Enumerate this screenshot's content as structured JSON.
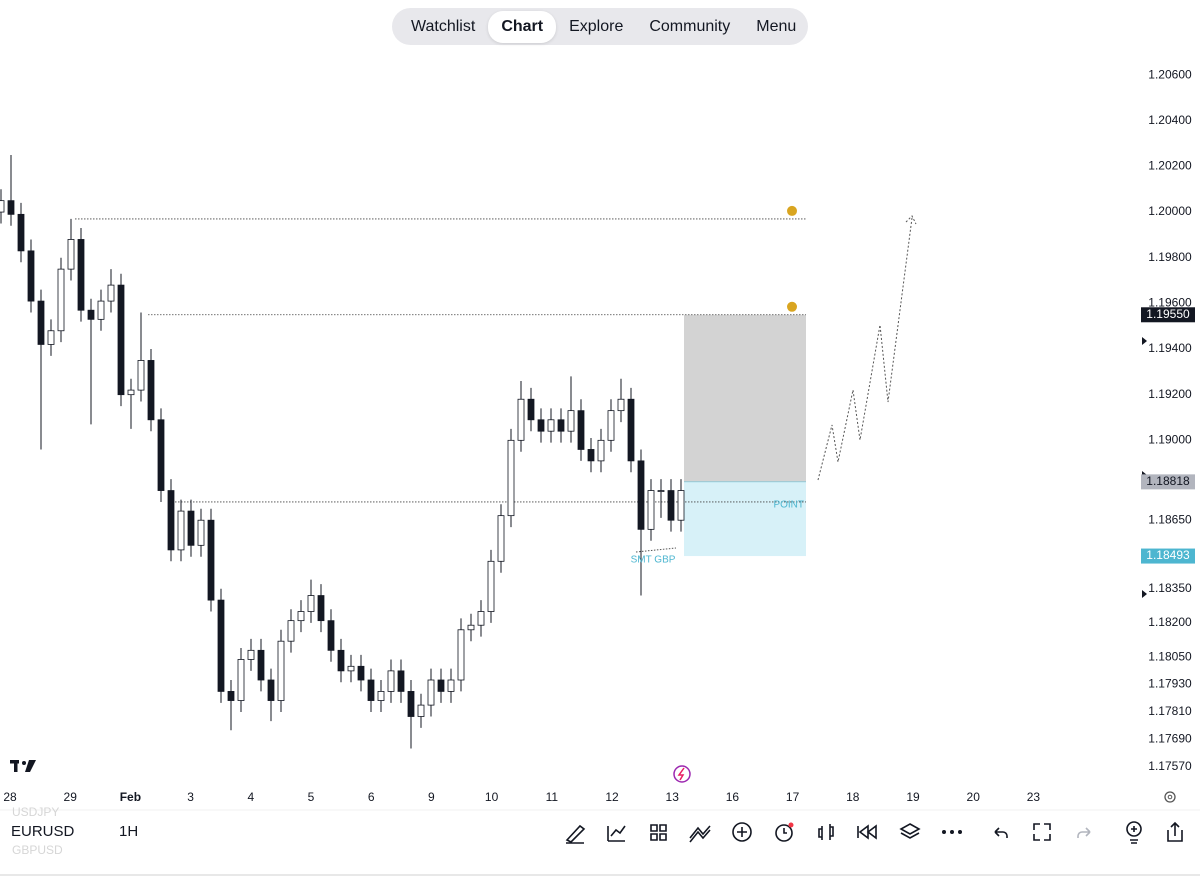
{
  "nav": {
    "tabs": [
      "Watchlist",
      "Chart",
      "Explore",
      "Community",
      "Menu"
    ],
    "active": 1
  },
  "chart_data": {
    "type": "candlestick",
    "symbol": "EURUSD",
    "interval": "1H",
    "other_symbols": [
      "USDJPY",
      "GBPUSD"
    ],
    "categories": [
      "28",
      "29",
      "Feb",
      "3",
      "4",
      "5",
      "6",
      "9",
      "10",
      "11",
      "12",
      "13",
      "16",
      "17",
      "18",
      "19",
      "20",
      "23"
    ],
    "candles": [
      [
        1.2,
        1.201,
        1.1995,
        1.2005
      ],
      [
        1.2005,
        1.2025,
        1.1994,
        1.1999
      ],
      [
        1.1999,
        1.2004,
        1.1978,
        1.1983
      ],
      [
        1.1983,
        1.1988,
        1.1956,
        1.1961
      ],
      [
        1.1961,
        1.1966,
        1.1896,
        1.1942
      ],
      [
        1.1942,
        1.1953,
        1.1937,
        1.1948
      ],
      [
        1.1948,
        1.198,
        1.1943,
        1.1975
      ],
      [
        1.1975,
        1.1997,
        1.197,
        1.1988
      ],
      [
        1.1988,
        1.1993,
        1.1952,
        1.1957
      ],
      [
        1.1957,
        1.1962,
        1.1907,
        1.1953
      ],
      [
        1.1953,
        1.1966,
        1.1948,
        1.1961
      ],
      [
        1.1961,
        1.1975,
        1.1956,
        1.1968
      ],
      [
        1.1968,
        1.1973,
        1.1915,
        1.192
      ],
      [
        1.192,
        1.1927,
        1.1905,
        1.1922
      ],
      [
        1.1922,
        1.1956,
        1.1917,
        1.1935
      ],
      [
        1.1935,
        1.194,
        1.1904,
        1.1909
      ],
      [
        1.1909,
        1.1914,
        1.1873,
        1.1878
      ],
      [
        1.1878,
        1.1883,
        1.1847,
        1.1852
      ],
      [
        1.1852,
        1.1874,
        1.1847,
        1.1869
      ],
      [
        1.1869,
        1.1874,
        1.1849,
        1.1854
      ],
      [
        1.1854,
        1.187,
        1.1849,
        1.1865
      ],
      [
        1.1865,
        1.187,
        1.1825,
        1.183
      ],
      [
        1.183,
        1.1835,
        1.1785,
        1.179
      ],
      [
        1.179,
        1.1795,
        1.1773,
        1.1786
      ],
      [
        1.1786,
        1.1809,
        1.1781,
        1.1804
      ],
      [
        1.1804,
        1.1813,
        1.1799,
        1.1808
      ],
      [
        1.1808,
        1.1813,
        1.179,
        1.1795
      ],
      [
        1.1795,
        1.18,
        1.1777,
        1.1786
      ],
      [
        1.1786,
        1.1817,
        1.1781,
        1.1812
      ],
      [
        1.1812,
        1.1826,
        1.1807,
        1.1821
      ],
      [
        1.1821,
        1.183,
        1.1816,
        1.1825
      ],
      [
        1.1825,
        1.1839,
        1.182,
        1.1832
      ],
      [
        1.1832,
        1.1837,
        1.1816,
        1.1821
      ],
      [
        1.1821,
        1.1826,
        1.1803,
        1.1808
      ],
      [
        1.1808,
        1.1813,
        1.1794,
        1.1799
      ],
      [
        1.1799,
        1.1806,
        1.1794,
        1.1801
      ],
      [
        1.1801,
        1.1806,
        1.179,
        1.1795
      ],
      [
        1.1795,
        1.18,
        1.1781,
        1.1786
      ],
      [
        1.1786,
        1.1795,
        1.1781,
        1.179
      ],
      [
        1.179,
        1.1804,
        1.1785,
        1.1799
      ],
      [
        1.1799,
        1.1804,
        1.1785,
        1.179
      ],
      [
        1.179,
        1.1795,
        1.1765,
        1.1779
      ],
      [
        1.1779,
        1.1789,
        1.1774,
        1.1784
      ],
      [
        1.1784,
        1.18,
        1.1779,
        1.1795
      ],
      [
        1.1795,
        1.18,
        1.1785,
        1.179
      ],
      [
        1.179,
        1.18,
        1.1785,
        1.1795
      ],
      [
        1.1795,
        1.1822,
        1.179,
        1.1817
      ],
      [
        1.1817,
        1.1824,
        1.1812,
        1.1819
      ],
      [
        1.1819,
        1.183,
        1.1814,
        1.1825
      ],
      [
        1.1825,
        1.1852,
        1.182,
        1.1847
      ],
      [
        1.1847,
        1.1872,
        1.1842,
        1.1867
      ],
      [
        1.1867,
        1.1905,
        1.1862,
        1.19
      ],
      [
        1.19,
        1.1926,
        1.1895,
        1.1918
      ],
      [
        1.1918,
        1.1923,
        1.1904,
        1.1909
      ],
      [
        1.1909,
        1.1914,
        1.1899,
        1.1904
      ],
      [
        1.1904,
        1.1914,
        1.1899,
        1.1909
      ],
      [
        1.1909,
        1.1914,
        1.1899,
        1.1904
      ],
      [
        1.1904,
        1.1928,
        1.1899,
        1.1913
      ],
      [
        1.1913,
        1.1918,
        1.1891,
        1.1896
      ],
      [
        1.1896,
        1.1901,
        1.1886,
        1.1891
      ],
      [
        1.1891,
        1.1905,
        1.1886,
        1.19
      ],
      [
        1.19,
        1.1918,
        1.1895,
        1.1913
      ],
      [
        1.1913,
        1.1927,
        1.1908,
        1.1918
      ],
      [
        1.1918,
        1.1923,
        1.1886,
        1.1891
      ],
      [
        1.1891,
        1.1896,
        1.1832,
        1.1861
      ],
      [
        1.1861,
        1.1883,
        1.1856,
        1.1878
      ],
      [
        1.1878,
        1.1883,
        1.1866,
        1.1878
      ],
      [
        1.1878,
        1.1883,
        1.186,
        1.1865
      ],
      [
        1.1865,
        1.1883,
        1.186,
        1.1878
      ]
    ],
    "up_color": "#ffffff",
    "down_color": "#131722",
    "ylim": [
      1.1749,
      1.2071
    ],
    "yticks": [
      {
        "value": 1.206,
        "label": "1.20600"
      },
      {
        "value": 1.204,
        "label": "1.20400"
      },
      {
        "value": 1.202,
        "label": "1.20200"
      },
      {
        "value": 1.2,
        "label": "1.20000"
      },
      {
        "value": 1.198,
        "label": "1.19800"
      },
      {
        "value": 1.196,
        "label": "1.19600"
      },
      {
        "value": 1.194,
        "label": "1.19400"
      },
      {
        "value": 1.192,
        "label": "1.19200"
      },
      {
        "value": 1.19,
        "label": "1.19000"
      },
      {
        "value": 1.1865,
        "label": "1.18650"
      },
      {
        "value": 1.1835,
        "label": "1.18350"
      },
      {
        "value": 1.182,
        "label": "1.18200"
      },
      {
        "value": 1.1805,
        "label": "1.18050"
      },
      {
        "value": 1.1793,
        "label": "1.17930"
      },
      {
        "value": 1.1781,
        "label": "1.17810"
      },
      {
        "value": 1.1769,
        "label": "1.17690"
      },
      {
        "value": 1.1757,
        "label": "1.17570"
      }
    ],
    "levels": [
      1.1997,
      1.1955,
      1.1873
    ],
    "price_markers": [
      {
        "value": 1.1955,
        "label": "1.19550",
        "color": "#131722"
      },
      {
        "value": 1.18818,
        "label": "1.18818",
        "color": "#b2b5be"
      },
      {
        "value": 1.18493,
        "label": "1.18493",
        "color": "#4db6d0"
      }
    ],
    "annotations": [
      "POINT",
      "SMT GBP"
    ]
  }
}
